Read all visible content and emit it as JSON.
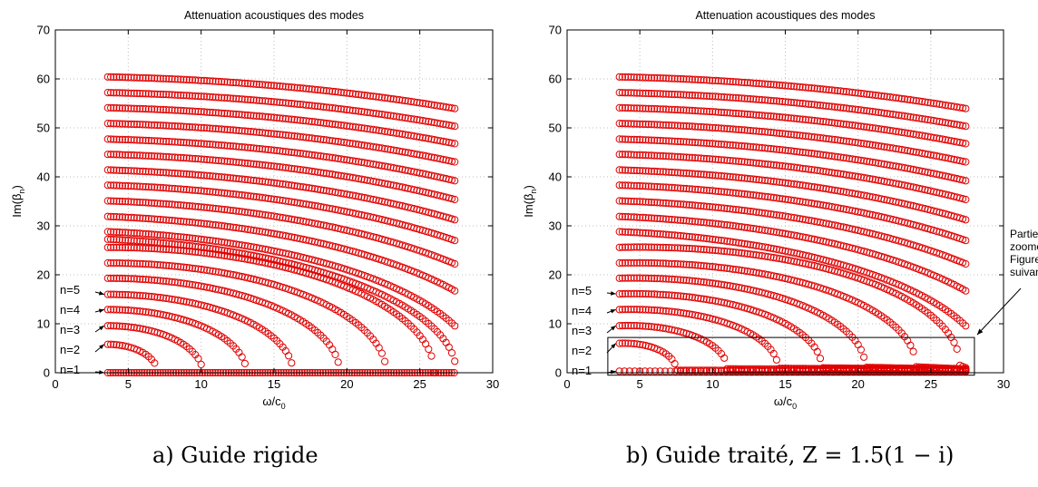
{
  "chart_data": [
    {
      "type": "scatter",
      "title": "Attenuation acoustiques des modes",
      "xlabel": "ω/c0",
      "ylabel": "Im(βn)",
      "xlim": [
        0,
        30
      ],
      "ylim": [
        0,
        70
      ],
      "xticks": [
        0,
        5,
        10,
        15,
        20,
        25,
        30
      ],
      "yticks": [
        0,
        10,
        20,
        30,
        40,
        50,
        60,
        70
      ],
      "grid": "dotted",
      "marker": "circle",
      "marker_color": "#e00000",
      "x_range": [
        3.6,
        27.5
      ],
      "zero_branch": [
        3.6,
        27.5
      ],
      "modes": [
        {
          "n": 1,
          "y0": 0
        },
        {
          "n": 2,
          "y0": 5.8,
          "cutoff": 7.0
        },
        {
          "n": 3,
          "y0": 9.6,
          "cutoff": 10.1
        },
        {
          "n": 4,
          "y0": 12.9,
          "cutoff": 13.1
        },
        {
          "n": 5,
          "y0": 16.0,
          "cutoff": 16.3
        },
        {
          "n": 6,
          "y0": 19.3,
          "cutoff": 19.5
        },
        {
          "n": 7,
          "y0": 22.4,
          "cutoff": 22.7
        },
        {
          "n": 8,
          "y0": 25.6,
          "cutoff": 26.0
        },
        {
          "n": 9,
          "y0": 28.8
        },
        {
          "n": 10,
          "y0": 31.9
        },
        {
          "n": 11,
          "y0": 35.1
        },
        {
          "n": 12,
          "y0": 38.3
        },
        {
          "n": 13,
          "y0": 41.4
        },
        {
          "n": 14,
          "y0": 44.6
        },
        {
          "n": 15,
          "y0": 47.7
        },
        {
          "n": 16,
          "y0": 50.9
        },
        {
          "n": 17,
          "y0": 54.1
        },
        {
          "n": 18,
          "y0": 57.2
        },
        {
          "n": 19,
          "y0": 60.4
        }
      ],
      "annotations": [
        "n=5",
        "n=4",
        "n=3",
        "n=2",
        "n=1"
      ],
      "caption": "a) Guide rigide"
    },
    {
      "type": "scatter",
      "title": "Attenuation acoustiques des modes",
      "xlabel": "ω/c0",
      "ylabel": "Im(βn)",
      "xlim": [
        0,
        30
      ],
      "ylim": [
        0,
        70
      ],
      "xticks": [
        0,
        5,
        10,
        15,
        20,
        25,
        30
      ],
      "yticks": [
        0,
        10,
        20,
        30,
        40,
        50,
        60,
        70
      ],
      "grid": "dotted",
      "marker": "circle",
      "marker_color": "#e00000",
      "x_range": [
        3.6,
        27.5
      ],
      "modes": [
        {
          "n": 1,
          "y0": 0.3,
          "end": 0.2
        },
        {
          "n": 2,
          "y0": 6.0,
          "cutoff": 7.5,
          "end": 0.5
        },
        {
          "n": 3,
          "y0": 9.6,
          "cutoff": 11.0,
          "end": 0.8
        },
        {
          "n": 4,
          "y0": 12.9,
          "cutoff": 14.5,
          "end": 0.9
        },
        {
          "n": 5,
          "y0": 16.1,
          "cutoff": 17.5,
          "end": 1.0
        },
        {
          "n": 6,
          "y0": 19.3,
          "cutoff": 20.5,
          "end": 1.1
        },
        {
          "n": 7,
          "y0": 22.4,
          "cutoff": 24.0,
          "end": 1.2
        },
        {
          "n": 8,
          "y0": 25.6,
          "cutoff": 27.0,
          "end": 1.5
        },
        {
          "n": 9,
          "y0": 28.8
        },
        {
          "n": 10,
          "y0": 31.9
        },
        {
          "n": 11,
          "y0": 35.1
        },
        {
          "n": 12,
          "y0": 38.3
        },
        {
          "n": 13,
          "y0": 41.4
        },
        {
          "n": 14,
          "y0": 44.6
        },
        {
          "n": 15,
          "y0": 47.7
        },
        {
          "n": 16,
          "y0": 50.9
        },
        {
          "n": 17,
          "y0": 54.1
        },
        {
          "n": 18,
          "y0": 57.2
        },
        {
          "n": 19,
          "y0": 60.4
        }
      ],
      "annotations": [
        "n=5",
        "n=4",
        "n=3",
        "n=2",
        "n=1"
      ],
      "zoom_box": {
        "x": [
          2.8,
          28.0
        ],
        "y": [
          -0.5,
          7.2
        ]
      },
      "zoom_text": [
        "Partie",
        "zoomée",
        "Figure",
        "suivante"
      ],
      "caption": "b) Guide traité, Z = 1.5(1 − i)"
    }
  ]
}
